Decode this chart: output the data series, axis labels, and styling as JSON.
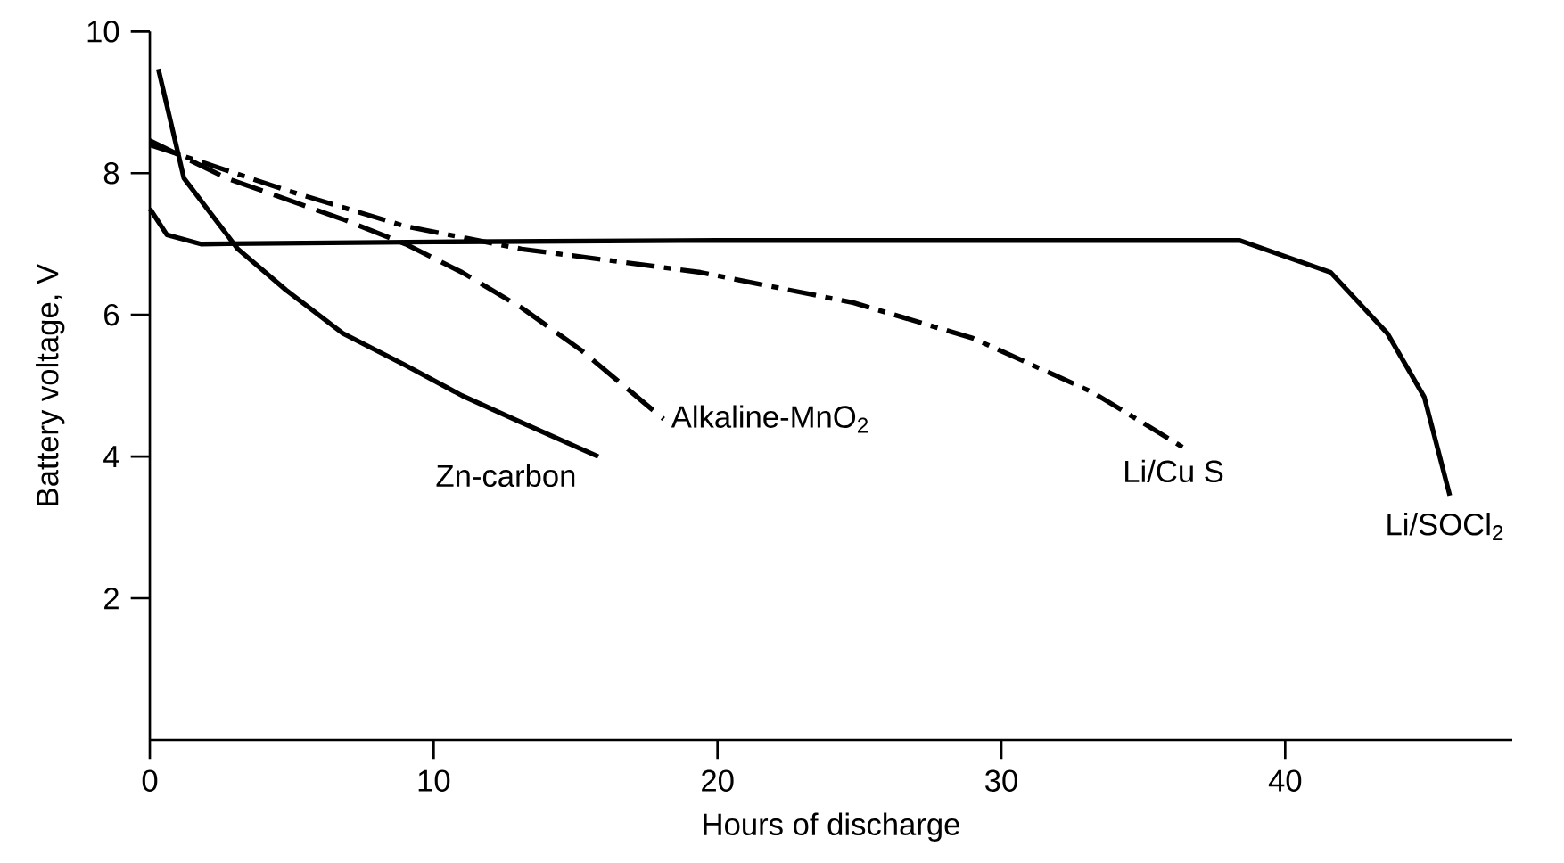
{
  "chart_data": {
    "type": "line",
    "xlabel": "Hours of discharge",
    "ylabel": "Battery voltage, V",
    "xlim": [
      0,
      48
    ],
    "ylim": [
      0,
      10
    ],
    "xticks": [
      0,
      10,
      20,
      30,
      40
    ],
    "yticks": [
      2,
      4,
      6,
      8,
      10
    ],
    "grid": false,
    "legend": false,
    "marker": "none",
    "series": [
      {
        "name": "Zn-carbon",
        "color": "#000000",
        "line_style": "solid",
        "x": [
          0.3,
          1.2,
          3.1,
          4.8,
          6.8,
          9.0,
          11.0,
          13.1,
          15.8
        ],
        "values": [
          9.47,
          7.93,
          6.93,
          6.35,
          5.74,
          5.29,
          4.86,
          4.48,
          4.0
        ]
      },
      {
        "name": "Alkaline-MnO$_{2}$",
        "color": "#000000",
        "line_style": "dashed",
        "x": [
          0,
          2.7,
          6.8,
          9.0,
          11.0,
          13.1,
          15.2,
          18.1
        ],
        "values": [
          8.46,
          7.93,
          7.35,
          7.0,
          6.6,
          6.1,
          5.5,
          4.53
        ]
      },
      {
        "name": "Li/Cu S",
        "color": "#000000",
        "line_style": "dashdot",
        "x": [
          0,
          4.8,
          9.0,
          13.1,
          19.4,
          24.8,
          29.0,
          33.2,
          36.4
        ],
        "values": [
          8.4,
          7.76,
          7.25,
          6.93,
          6.6,
          6.17,
          5.67,
          4.91,
          4.13
        ]
      },
      {
        "name": "Li/SOCl$_{2}$",
        "color": "#000000",
        "line_style": "solid",
        "x": [
          0,
          0.6,
          1.8,
          10,
          20,
          30,
          38.4,
          41.6,
          43.6,
          44.9,
          45.8
        ],
        "values": [
          7.5,
          7.13,
          7.0,
          7.03,
          7.05,
          7.05,
          7.05,
          6.6,
          5.74,
          4.84,
          3.45
        ]
      }
    ]
  }
}
